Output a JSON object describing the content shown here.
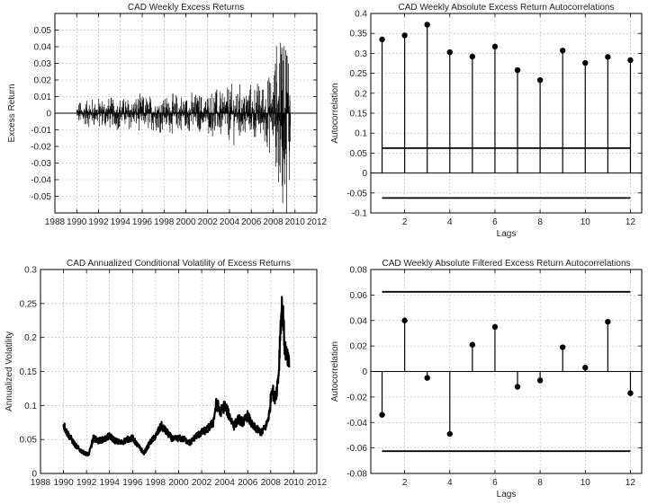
{
  "chart_data": [
    {
      "type": "line",
      "style": "impulse",
      "title": "CAD Weekly Excess Returns",
      "xlabel": "",
      "ylabel": "Excess Return",
      "xlim": [
        1988,
        2012
      ],
      "ylim": [
        -0.06,
        0.06
      ],
      "xticks": [
        1988,
        1990,
        1992,
        1994,
        1996,
        1998,
        2000,
        2002,
        2004,
        2006,
        2008,
        2010,
        2012
      ],
      "yticks": [
        -0.05,
        -0.04,
        -0.03,
        -0.02,
        -0.01,
        0,
        0.01,
        0.02,
        0.03,
        0.04,
        0.05
      ],
      "xtick_labels": [
        "1988",
        "1990",
        "1992",
        "1994",
        "1996",
        "1998",
        "2000",
        "2002",
        "2004",
        "2006",
        "2008",
        "2010",
        "2012"
      ],
      "ytick_labels": [
        "-0.05",
        "-0.04",
        "-0.03",
        "-0.02",
        "-0.01",
        "0",
        "0.01",
        "0.02",
        "0.03",
        "0.04",
        "0.05"
      ],
      "grid": true,
      "x_range": [
        1990.0,
        2009.6
      ],
      "amplitude_envelope": {
        "x": [
          1990,
          1992,
          1994,
          1996,
          1998,
          2000,
          2002,
          2003,
          2004,
          2006,
          2007,
          2008,
          2008.5,
          2009,
          2009.6
        ],
        "y": [
          0.006,
          0.008,
          0.008,
          0.009,
          0.009,
          0.01,
          0.01,
          0.013,
          0.014,
          0.014,
          0.016,
          0.02,
          0.045,
          0.05,
          0.04
        ]
      },
      "series_color": "#000000"
    },
    {
      "type": "scatter",
      "style": "stem",
      "title": "CAD Weekly Absolute Excess Return Autocorrelations",
      "xlabel": "Lags",
      "ylabel": "Autocorrelation",
      "xlim": [
        0.5,
        12.5
      ],
      "ylim": [
        -0.1,
        0.4
      ],
      "xticks": [
        2,
        4,
        6,
        8,
        10,
        12
      ],
      "yticks": [
        -0.1,
        -0.05,
        0,
        0.05,
        0.1,
        0.15,
        0.2,
        0.25,
        0.3,
        0.35,
        0.4
      ],
      "xtick_labels": [
        "2",
        "4",
        "6",
        "8",
        "10",
        "12"
      ],
      "ytick_labels": [
        "-0.1",
        "-0.05",
        "0",
        "0.05",
        "0.1",
        "0.15",
        "0.2",
        "0.25",
        "0.3",
        "0.35",
        "0.4"
      ],
      "grid": true,
      "x": [
        1,
        2,
        3,
        4,
        5,
        6,
        7,
        8,
        9,
        10,
        11,
        12
      ],
      "y": [
        0.335,
        0.345,
        0.372,
        0.303,
        0.292,
        0.317,
        0.258,
        0.233,
        0.307,
        0.276,
        0.291,
        0.283
      ],
      "confidence_bounds": [
        0.0625,
        -0.0625
      ],
      "series_color": "#000000"
    },
    {
      "type": "line",
      "title": "CAD Annualized Conditional Volatility of Excess Returns",
      "xlabel": "",
      "ylabel": "Annualized Volatility",
      "xlim": [
        1988,
        2012
      ],
      "ylim": [
        0,
        0.3
      ],
      "xticks": [
        1988,
        1990,
        1992,
        1994,
        1996,
        1998,
        2000,
        2002,
        2004,
        2006,
        2008,
        2010,
        2012
      ],
      "yticks": [
        0,
        0.05,
        0.1,
        0.15,
        0.2,
        0.25,
        0.3
      ],
      "xtick_labels": [
        "1988",
        "1990",
        "1992",
        "1994",
        "1996",
        "1998",
        "2000",
        "2002",
        "2004",
        "2006",
        "2008",
        "2010",
        "2012"
      ],
      "ytick_labels": [
        "0",
        "0.05",
        "0.1",
        "0.15",
        "0.2",
        "0.25",
        "0.3"
      ],
      "grid": true,
      "x": [
        1990.0,
        1990.3,
        1990.7,
        1991.0,
        1991.4,
        1991.8,
        1992.2,
        1992.6,
        1993.0,
        1993.5,
        1994.0,
        1994.5,
        1995.0,
        1995.5,
        1996.0,
        1996.5,
        1997.0,
        1997.5,
        1998.0,
        1998.5,
        1999.0,
        1999.5,
        2000.0,
        2000.5,
        2001.0,
        2001.5,
        2002.0,
        2002.5,
        2003.0,
        2003.3,
        2003.6,
        2004.0,
        2004.4,
        2004.8,
        2005.2,
        2005.6,
        2006.0,
        2006.4,
        2006.8,
        2007.2,
        2007.6,
        2007.9,
        2008.1,
        2008.3,
        2008.5,
        2008.7,
        2008.85,
        2009.0,
        2009.2,
        2009.4,
        2009.6
      ],
      "y": [
        0.072,
        0.06,
        0.05,
        0.042,
        0.035,
        0.03,
        0.028,
        0.052,
        0.048,
        0.05,
        0.055,
        0.048,
        0.045,
        0.05,
        0.052,
        0.04,
        0.03,
        0.045,
        0.055,
        0.07,
        0.06,
        0.05,
        0.052,
        0.05,
        0.045,
        0.055,
        0.06,
        0.065,
        0.075,
        0.105,
        0.09,
        0.1,
        0.085,
        0.07,
        0.08,
        0.075,
        0.085,
        0.07,
        0.065,
        0.06,
        0.07,
        0.09,
        0.13,
        0.11,
        0.12,
        0.15,
        0.22,
        0.25,
        0.19,
        0.17,
        0.16
      ],
      "series_color": "#000000"
    },
    {
      "type": "scatter",
      "style": "stem",
      "title": "CAD Weekly Absolute Filtered Excess Return Autocorrelations",
      "xlabel": "Lags",
      "ylabel": "Autocorrelation",
      "xlim": [
        0.5,
        12.5
      ],
      "ylim": [
        -0.08,
        0.08
      ],
      "xticks": [
        2,
        4,
        6,
        8,
        10,
        12
      ],
      "yticks": [
        -0.08,
        -0.06,
        -0.04,
        -0.02,
        0,
        0.02,
        0.04,
        0.06,
        0.08
      ],
      "xtick_labels": [
        "2",
        "4",
        "6",
        "8",
        "10",
        "12"
      ],
      "ytick_labels": [
        "-0.08",
        "-0.06",
        "-0.04",
        "-0.02",
        "0",
        "0.02",
        "0.04",
        "0.06",
        "0.08"
      ],
      "grid": true,
      "x": [
        1,
        2,
        3,
        4,
        5,
        6,
        7,
        8,
        9,
        10,
        11,
        12
      ],
      "y": [
        -0.034,
        0.04,
        -0.005,
        -0.049,
        0.021,
        0.035,
        -0.012,
        -0.007,
        0.019,
        0.003,
        0.039,
        -0.017
      ],
      "confidence_bounds": [
        0.0625,
        -0.0625
      ],
      "series_color": "#000000"
    }
  ]
}
